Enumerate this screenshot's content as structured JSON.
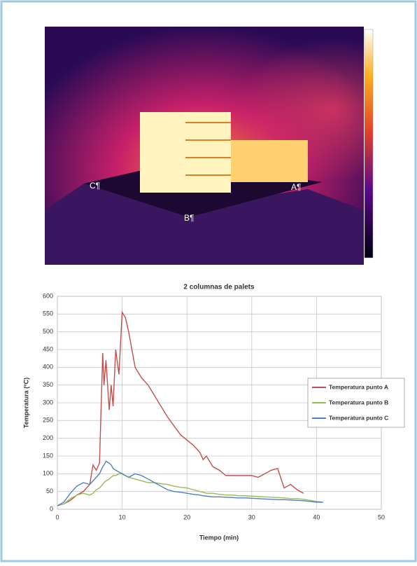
{
  "image": {
    "labels": [
      "C¶",
      "B¶",
      "A¶"
    ]
  },
  "chart_data": {
    "type": "line",
    "title": "2 columnas de palets",
    "x_label": "Tiempo (min)",
    "y_label": "Temperatura (ºC)",
    "x": [
      0,
      1,
      2,
      3,
      4,
      5,
      5.5,
      6,
      6.5,
      7,
      7.2,
      7.5,
      8,
      8.3,
      8.6,
      9,
      9.5,
      10,
      10.5,
      11,
      12,
      13,
      14,
      15,
      16,
      17,
      18,
      19,
      20,
      21,
      22,
      22.5,
      23,
      24,
      25,
      26,
      27,
      28,
      29,
      30,
      31,
      32,
      33,
      34,
      35,
      36,
      37,
      38,
      39,
      40,
      41
    ],
    "series": [
      {
        "name": "Temperatura punto A",
        "color": "#c0504d",
        "values": [
          10,
          15,
          25,
          40,
          50,
          70,
          125,
          110,
          130,
          440,
          350,
          420,
          280,
          350,
          290,
          450,
          380,
          555,
          540,
          500,
          400,
          370,
          350,
          320,
          290,
          260,
          235,
          210,
          195,
          180,
          160,
          140,
          150,
          120,
          110,
          95,
          95,
          95,
          95,
          95,
          90,
          100,
          110,
          115,
          60,
          70,
          55,
          45,
          null,
          null,
          null
        ]
      },
      {
        "name": "Temperatura punto B",
        "color": "#9bbb59",
        "values": [
          10,
          15,
          30,
          40,
          45,
          40,
          45,
          55,
          60,
          70,
          75,
          80,
          85,
          90,
          95,
          95,
          100,
          100,
          95,
          90,
          85,
          80,
          75,
          75,
          72,
          70,
          65,
          62,
          60,
          55,
          50,
          48,
          45,
          45,
          42,
          40,
          40,
          38,
          38,
          37,
          36,
          35,
          34,
          33,
          32,
          30,
          30,
          28,
          25,
          22,
          20
        ]
      },
      {
        "name": "Temperatura punto C",
        "color": "#4f81bd",
        "values": [
          10,
          20,
          45,
          65,
          75,
          70,
          80,
          90,
          100,
          120,
          125,
          135,
          130,
          125,
          115,
          110,
          105,
          100,
          95,
          90,
          100,
          95,
          85,
          75,
          65,
          55,
          50,
          48,
          45,
          42,
          40,
          38,
          37,
          35,
          35,
          34,
          33,
          32,
          32,
          31,
          30,
          29,
          28,
          27,
          27,
          26,
          25,
          24,
          22,
          20,
          20
        ]
      }
    ],
    "xlim": [
      0,
      50
    ],
    "xticks": [
      0,
      10,
      20,
      30,
      40,
      50
    ],
    "ylim": [
      0,
      600
    ],
    "yticks": [
      0,
      50,
      100,
      150,
      200,
      250,
      300,
      350,
      400,
      450,
      500,
      550,
      600
    ],
    "grid": true,
    "legend": "right"
  }
}
